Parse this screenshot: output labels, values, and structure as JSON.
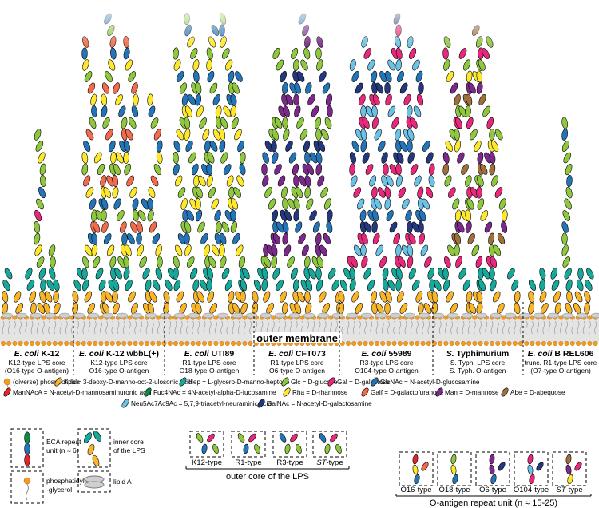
{
  "membrane_label": "outer membrane",
  "strains": [
    {
      "name_a": "E. coli",
      "name_b": "K-12",
      "core": "K12-type LPS core",
      "oag": "(O16-type O-antigen)"
    },
    {
      "name_a": "E. coli",
      "name_b": "K-12 wbbL(+)",
      "core": "K12-type LPS core",
      "oag": "O16-type O-antigen"
    },
    {
      "name_a": "E. coli",
      "name_b": "UTI89",
      "core": "R1-type LPS core",
      "oag": "O18-type O-antigen"
    },
    {
      "name_a": "E. coli",
      "name_b": "CFT073",
      "core": "R1-type LPS core",
      "oag": "O6-type O-antigen"
    },
    {
      "name_a": "E. coli",
      "name_b": "55989",
      "core": "R3-type LPS core",
      "oag": "O104-type O-antigen"
    },
    {
      "name_a": "S.",
      "name_b": "Typhimurium",
      "core": "S. Typh. LPS core",
      "oag": "S. Typh. O-antigen"
    },
    {
      "name_a": "E. coli",
      "name_b": "B REL606",
      "core": "trunc. R1-type LPS core",
      "oag": "(O7-type O-antigen)"
    }
  ],
  "legend": [
    {
      "label": "(diverse) phospholipids",
      "color": "#f39b1f",
      "shape": "lipid"
    },
    {
      "label": "Kdo = 3-deoxy-D-manno-oct-2-ulosonic acid",
      "color": "#f7b52b",
      "shape": "oval"
    },
    {
      "label": "Hep = L-glycero-D-manno-heptose",
      "color": "#16a89a",
      "shape": "oval"
    },
    {
      "label": "Glc = D-glucose",
      "color": "#8fc73e",
      "shape": "oval"
    },
    {
      "label": "Gal = D-galactose",
      "color": "#e8297b",
      "shape": "oval"
    },
    {
      "label": "GlcNAc = N-acetyl-D-glucosamine",
      "color": "#2475b8",
      "shape": "oval"
    },
    {
      "label": "ManNAcA = N-acetyl-D-mannosaminuronic acid",
      "color": "#e3262a",
      "shape": "oval"
    },
    {
      "label": "Fuc4NAc = 4N-acetyl-alpha-D-fucosamine",
      "color": "#0e8a43",
      "shape": "oval"
    },
    {
      "label": "Rha = D-rhamnose",
      "color": "#fde82c",
      "shape": "oval"
    },
    {
      "label": "Galf = D-galactofuranose",
      "color": "#f26b4d",
      "shape": "oval"
    },
    {
      "label": "Man = D-mannose",
      "color": "#7b2a8c",
      "shape": "oval"
    },
    {
      "label": "Abe = D-abequose",
      "color": "#a0703c",
      "shape": "oval"
    },
    {
      "label": "Neu5Ac7Ac9Ac = 5,7,9-triacetyl-neuraminic acid",
      "color": "#6cc1e6",
      "shape": "oval"
    },
    {
      "label": "GalNAc = N-acetyl-D-galactosamine",
      "color": "#24387e",
      "shape": "oval"
    }
  ],
  "bottom": {
    "eca_label": "ECA repeat unit (n ≈ 6)",
    "pg_label": "phosphatidyl -glycerol",
    "inner_core_label": "inner core of the LPS",
    "lipid_a_label": "lipid A",
    "outer_core_types": [
      "K12-type",
      "R1-type",
      "R3-type",
      "ST-type"
    ],
    "outer_core_title": "outer core of the LPS",
    "oantigen_types": [
      "O16-type",
      "O18-type",
      "O6-type",
      "O104-type",
      "ST-type"
    ],
    "oantigen_title": "O-antigen repeat unit (n ≈ 15-25)"
  },
  "colors": {
    "kdo": "#f7b52b",
    "hep": "#16a89a",
    "glc": "#8fc73e",
    "gal": "#e8297b",
    "glcnac": "#2475b8",
    "mannaca": "#e3262a",
    "fuc4nac": "#0e8a43",
    "rha": "#fde82c",
    "galf": "#f26b4d",
    "man": "#7b2a8c",
    "abe": "#a0703c",
    "neu": "#6cc1e6",
    "galnac": "#24387e",
    "lipid": "#f39b1f",
    "membrane": "#d8d8d8"
  }
}
